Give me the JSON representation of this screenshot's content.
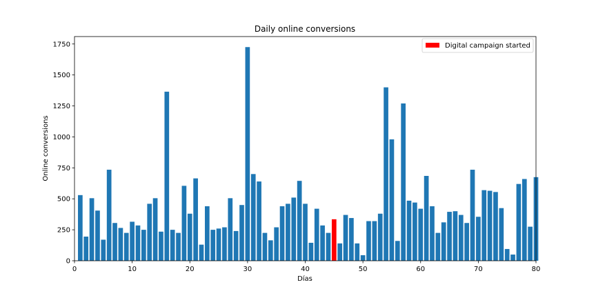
{
  "chart_data": {
    "type": "bar",
    "title": "Daily online conversions",
    "xlabel": "Días",
    "ylabel": "Online conversions",
    "xlim": [
      0,
      80
    ],
    "ylim": [
      0,
      1810
    ],
    "xticks": [
      0,
      10,
      20,
      30,
      40,
      50,
      60,
      70,
      80
    ],
    "yticks": [
      0,
      250,
      500,
      750,
      1000,
      1250,
      1500,
      1750
    ],
    "grid": false,
    "legend": {
      "placement": "top-right",
      "entries": [
        {
          "label": "Digital campaign started",
          "color": "#ff0000"
        }
      ]
    },
    "colors": {
      "default": "#1f77b4",
      "highlight": "#ff0000"
    },
    "highlight_x": 45,
    "x": [
      1,
      2,
      3,
      4,
      5,
      6,
      7,
      8,
      9,
      10,
      11,
      12,
      13,
      14,
      15,
      16,
      17,
      18,
      19,
      20,
      21,
      22,
      23,
      24,
      25,
      26,
      27,
      28,
      29,
      30,
      31,
      32,
      33,
      34,
      35,
      36,
      37,
      38,
      39,
      40,
      41,
      42,
      43,
      44,
      45,
      46,
      47,
      48,
      49,
      50,
      51,
      52,
      53,
      54,
      55,
      56,
      57,
      58,
      59,
      60,
      61,
      62,
      63,
      64,
      65,
      66,
      67,
      68,
      69,
      70,
      71,
      72,
      73,
      74,
      75,
      76,
      77,
      78,
      79,
      80
    ],
    "values": [
      530,
      195,
      505,
      405,
      170,
      735,
      305,
      265,
      225,
      315,
      285,
      250,
      460,
      505,
      235,
      1365,
      250,
      225,
      605,
      380,
      665,
      130,
      440,
      250,
      260,
      270,
      505,
      240,
      450,
      1725,
      700,
      640,
      225,
      165,
      270,
      440,
      460,
      510,
      645,
      460,
      145,
      420,
      285,
      225,
      335,
      140,
      370,
      345,
      140,
      45,
      320,
      320,
      380,
      1400,
      980,
      160,
      1270,
      485,
      470,
      420,
      685,
      440,
      225,
      310,
      395,
      400,
      370,
      305,
      735,
      355,
      570,
      565,
      555,
      425,
      95,
      50,
      620,
      660,
      275,
      675
    ]
  }
}
